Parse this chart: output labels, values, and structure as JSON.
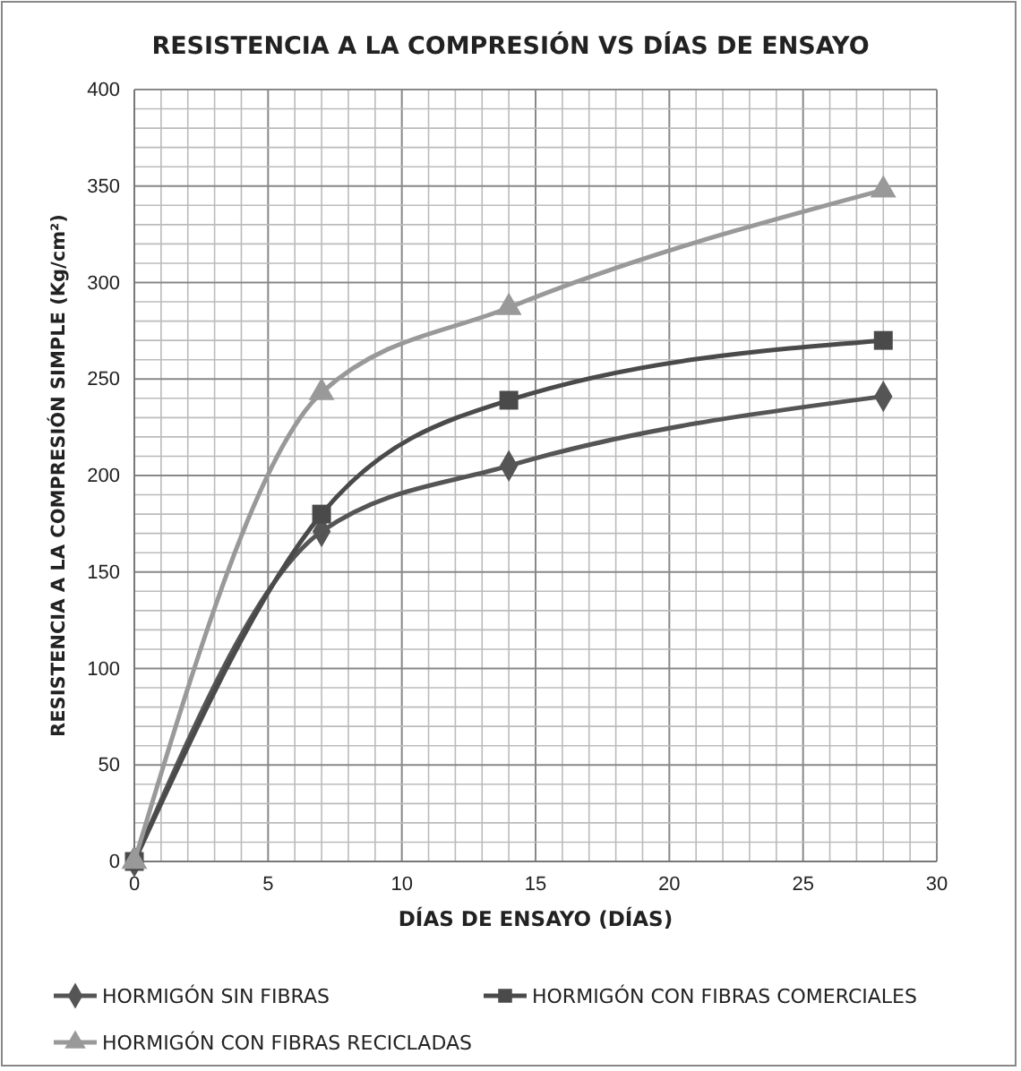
{
  "chart_data": {
    "type": "line",
    "title": "RESISTENCIA A LA COMPRESIÓN VS DÍAS DE ENSAYO",
    "xlabel": "DÍAS DE ENSAYO (DÍAS)",
    "ylabel": "RESISTENCIA A LA COMPRESIÓN SIMPLE (Kg/cm²)",
    "x": [
      0,
      7,
      14,
      28
    ],
    "series": [
      {
        "name": "HORMIGÓN SIN FIBRAS",
        "color": "#555555",
        "marker": "diamond",
        "values": [
          0,
          171,
          205,
          241
        ]
      },
      {
        "name": "HORMIGÓN CON FIBRAS COMERCIALES",
        "color": "#4a4a4a",
        "marker": "square",
        "values": [
          0,
          180,
          239,
          270
        ]
      },
      {
        "name": "HORMIGÓN CON FIBRAS RECICLADAS",
        "color": "#999999",
        "marker": "triangle",
        "values": [
          0,
          243,
          287,
          348
        ]
      }
    ],
    "xlim": [
      0,
      30
    ],
    "xticks": [
      0,
      5,
      10,
      15,
      20,
      25,
      30
    ],
    "ylim": [
      0,
      400
    ],
    "yticks": [
      0,
      50,
      100,
      150,
      200,
      250,
      300,
      350,
      400
    ],
    "grid": true,
    "legend": "bottom",
    "line_style": "solid"
  }
}
